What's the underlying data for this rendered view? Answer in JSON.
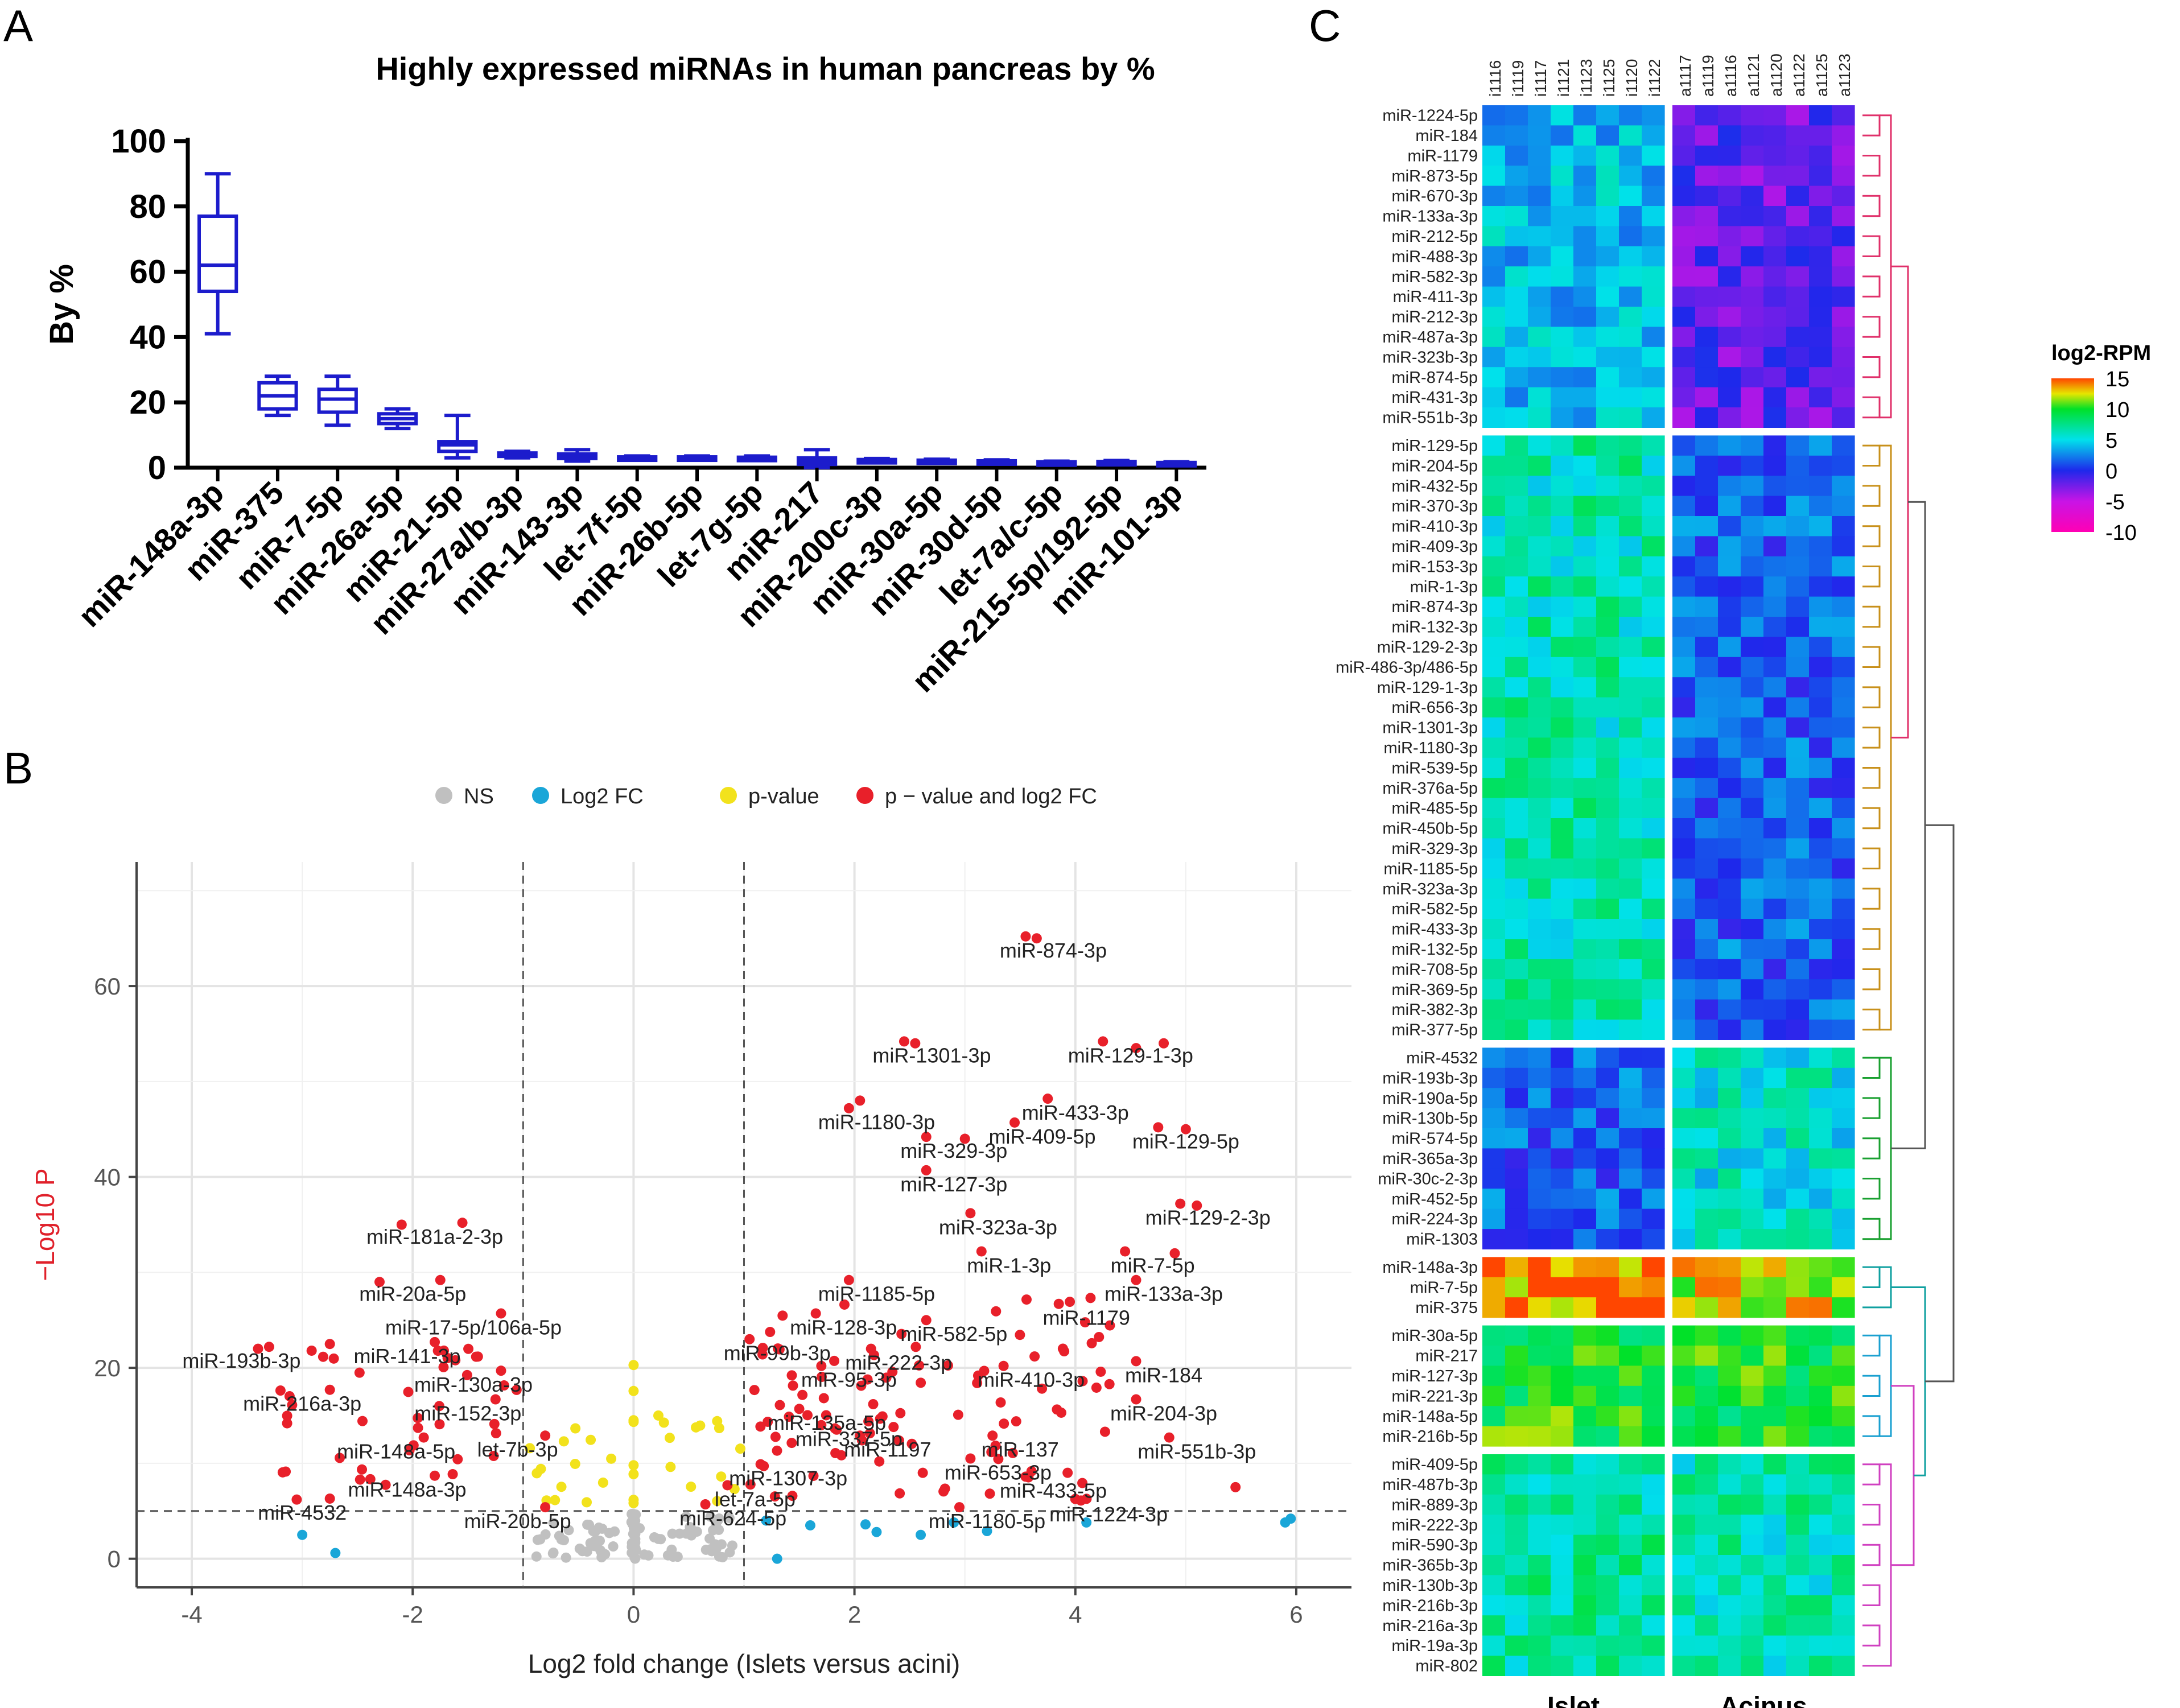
{
  "panels": {
    "a": "A",
    "b": "B",
    "c": "C"
  },
  "chart_data": [
    {
      "id": "A",
      "type": "boxplot",
      "title": "Highly expressed miRNAs in human pancreas by %",
      "ylabel": "By %",
      "ylim": [
        0,
        100
      ],
      "yticks": [
        0,
        20,
        40,
        60,
        80,
        100
      ],
      "color": "#1c1ccc",
      "categories": [
        "miR-148a-3p",
        "miR-375",
        "miR-7-5p",
        "miR-26a-5p",
        "miR-21-5p",
        "miR-27a/b-3p",
        "miR-143-3p",
        "let-7f-5p",
        "miR-26b-5p",
        "let-7g-5p",
        "miR-217",
        "miR-200c-3p",
        "miR-30a-5p",
        "miR-30d-5p",
        "let-7a/c-5p",
        "miR-215-5p/192-5p",
        "miR-101-3p"
      ],
      "boxes": [
        {
          "min": 41,
          "q1": 54,
          "median": 62,
          "q3": 77,
          "max": 90
        },
        {
          "min": 16,
          "q1": 18,
          "median": 22,
          "q3": 26,
          "max": 28
        },
        {
          "min": 13,
          "q1": 17,
          "median": 21,
          "q3": 24,
          "max": 28
        },
        {
          "min": 12,
          "q1": 13.5,
          "median": 15,
          "q3": 16.5,
          "max": 18
        },
        {
          "min": 3,
          "q1": 5,
          "median": 7,
          "q3": 8,
          "max": 16
        },
        {
          "min": 3,
          "q1": 3.5,
          "median": 4,
          "q3": 4.5,
          "max": 5
        },
        {
          "min": 2,
          "q1": 2.8,
          "median": 3.5,
          "q3": 4.2,
          "max": 5.5
        },
        {
          "min": 2.5,
          "q1": 2.8,
          "median": 3,
          "q3": 3.3,
          "max": 3.6
        },
        {
          "min": 2.5,
          "q1": 2.8,
          "median": 3,
          "q3": 3.3,
          "max": 3.6
        },
        {
          "min": 2.2,
          "q1": 2.5,
          "median": 2.9,
          "q3": 3.2,
          "max": 3.6
        },
        {
          "min": 0,
          "q1": 1,
          "median": 2,
          "q3": 3,
          "max": 5.5
        },
        {
          "min": 1.8,
          "q1": 2,
          "median": 2.2,
          "q3": 2.5,
          "max": 2.8
        },
        {
          "min": 1.7,
          "q1": 1.9,
          "median": 2.1,
          "q3": 2.3,
          "max": 2.6
        },
        {
          "min": 1.5,
          "q1": 1.7,
          "median": 1.9,
          "q3": 2.1,
          "max": 2.4
        },
        {
          "min": 1.2,
          "q1": 1.4,
          "median": 1.6,
          "q3": 1.8,
          "max": 2
        },
        {
          "min": 1.3,
          "q1": 1.5,
          "median": 1.7,
          "q3": 1.9,
          "max": 2.2
        },
        {
          "min": 1,
          "q1": 1.2,
          "median": 1.4,
          "q3": 1.6,
          "max": 1.8
        }
      ]
    },
    {
      "id": "B",
      "type": "scatter",
      "subtype": "volcano",
      "xlabel": "Log2 fold change (Islets versus acini)",
      "ylabel": "−Log10 P",
      "xlim": [
        -4.5,
        6.5
      ],
      "ylim": [
        -3,
        73
      ],
      "xticks": [
        -4,
        -2,
        0,
        2,
        4,
        6
      ],
      "yticks": [
        0,
        20,
        40,
        60
      ],
      "fc_cutoff": 1,
      "p_cutoff": 5,
      "legend": [
        {
          "label": "NS",
          "color": "#c0c0c0"
        },
        {
          "label": "Log2 FC",
          "color": "#1aa6d8"
        },
        {
          "label": "p-value",
          "color": "#f2e21c"
        },
        {
          "label": "p − value and log2 FC",
          "color": "#e8202a"
        }
      ],
      "labels": [
        {
          "text": "miR-874-3p",
          "x": 3.8,
          "y": 63
        },
        {
          "text": "miR-1301-3p",
          "x": 2.7,
          "y": 52
        },
        {
          "text": "miR-129-1-3p",
          "x": 4.5,
          "y": 52
        },
        {
          "text": "miR-433-3p",
          "x": 4.0,
          "y": 46
        },
        {
          "text": "miR-1180-3p",
          "x": 2.2,
          "y": 45
        },
        {
          "text": "miR-409-5p",
          "x": 3.7,
          "y": 43.5
        },
        {
          "text": "miR-129-5p",
          "x": 5.0,
          "y": 43
        },
        {
          "text": "miR-329-3p",
          "x": 2.9,
          "y": 42
        },
        {
          "text": "miR-127-3p",
          "x": 2.9,
          "y": 38.5
        },
        {
          "text": "miR-323a-3p",
          "x": 3.3,
          "y": 34
        },
        {
          "text": "miR-129-2-3p",
          "x": 5.2,
          "y": 35
        },
        {
          "text": "miR-181a-2-3p",
          "x": -1.8,
          "y": 33
        },
        {
          "text": "miR-1-3p",
          "x": 3.4,
          "y": 30
        },
        {
          "text": "miR-7-5p",
          "x": 4.7,
          "y": 30
        },
        {
          "text": "miR-20a-5p",
          "x": -2.0,
          "y": 27
        },
        {
          "text": "miR-1185-5p",
          "x": 2.2,
          "y": 27
        },
        {
          "text": "miR-133a-3p",
          "x": 4.8,
          "y": 27
        },
        {
          "text": "miR-1179",
          "x": 4.1,
          "y": 24.5
        },
        {
          "text": "miR-17-5p/106a-5p",
          "x": -1.45,
          "y": 23.5
        },
        {
          "text": "miR-128-3p",
          "x": 1.9,
          "y": 23.5
        },
        {
          "text": "miR-582-5p",
          "x": 2.9,
          "y": 22.8
        },
        {
          "text": "miR-141-3p",
          "x": -2.05,
          "y": 20.5
        },
        {
          "text": "miR-99b-3p",
          "x": 1.3,
          "y": 20.8
        },
        {
          "text": "miR-193b-3p",
          "x": -3.55,
          "y": 20
        },
        {
          "text": "miR-222-3p",
          "x": 2.4,
          "y": 19.8
        },
        {
          "text": "miR-184",
          "x": 4.8,
          "y": 18.5
        },
        {
          "text": "miR-95-3p",
          "x": 1.95,
          "y": 18
        },
        {
          "text": "miR-410-3p",
          "x": 3.6,
          "y": 18
        },
        {
          "text": "miR-130a-3p",
          "x": -1.45,
          "y": 17.5
        },
        {
          "text": "miR-216a-3p",
          "x": -3.0,
          "y": 15.5
        },
        {
          "text": "miR-152-3p",
          "x": -1.5,
          "y": 14.5
        },
        {
          "text": "miR-204-3p",
          "x": 4.8,
          "y": 14.5
        },
        {
          "text": "miR-135a-5p",
          "x": 1.75,
          "y": 13.5
        },
        {
          "text": "miR-337-5p",
          "x": 1.95,
          "y": 11.8
        },
        {
          "text": "miR-148a-5p",
          "x": -2.15,
          "y": 10.5
        },
        {
          "text": "let-7b-3p",
          "x": -1.05,
          "y": 10.7
        },
        {
          "text": "miR-1197",
          "x": 2.3,
          "y": 10.7
        },
        {
          "text": "miR-137",
          "x": 3.5,
          "y": 10.7
        },
        {
          "text": "miR-551b-3p",
          "x": 5.1,
          "y": 10.5
        },
        {
          "text": "miR-653-3p",
          "x": 3.3,
          "y": 8.3
        },
        {
          "text": "miR-1307-3p",
          "x": 1.4,
          "y": 7.7
        },
        {
          "text": "miR-148a-3p",
          "x": -2.05,
          "y": 6.5
        },
        {
          "text": "miR-433-5p",
          "x": 3.8,
          "y": 6.4
        },
        {
          "text": "let-7a-5p",
          "x": 1.1,
          "y": 5.5
        },
        {
          "text": "miR-4532",
          "x": -3.0,
          "y": 4.1
        },
        {
          "text": "miR-624-5p",
          "x": 0.9,
          "y": 3.5
        },
        {
          "text": "miR-20b-5p",
          "x": -1.05,
          "y": 3.2
        },
        {
          "text": "miR-1180-5p",
          "x": 3.2,
          "y": 3.2
        },
        {
          "text": "miR-1224-3p",
          "x": 4.3,
          "y": 3.9
        }
      ]
    },
    {
      "id": "C",
      "type": "heatmap",
      "legend_title": "log2-RPM",
      "scale_ticks": [
        15,
        10,
        5,
        0,
        -5,
        -10
      ],
      "scale_range": [
        -10,
        15
      ],
      "columns": [
        "i1116",
        "i1119",
        "i1117",
        "i1121",
        "i1123",
        "i1125",
        "i1120",
        "i1122",
        "a1117",
        "a1119",
        "a1116",
        "a1121",
        "a1120",
        "a1122",
        "a1125",
        "a1123"
      ],
      "groups": [
        "Islet",
        "Acinus"
      ],
      "clusters": [
        {
          "rows": [
            "miR-1224-5p",
            "miR-184",
            "miR-1179",
            "miR-873-5p",
            "miR-670-3p",
            "miR-133a-3p",
            "miR-212-5p",
            "miR-488-3p",
            "miR-582-3p",
            "miR-411-3p",
            "miR-212-3p",
            "miR-487a-3p",
            "miR-323b-3p",
            "miR-874-5p",
            "miR-431-3p",
            "miR-551b-3p"
          ],
          "islet": 4.0,
          "acinus": -2.0
        },
        {
          "rows": [
            "miR-129-5p",
            "miR-204-5p",
            "miR-432-5p",
            "miR-370-3p",
            "miR-410-3p",
            "miR-409-3p",
            "miR-153-3p",
            "miR-1-3p",
            "miR-874-3p",
            "miR-132-3p",
            "miR-129-2-3p",
            "miR-486-3p/486-5p",
            "miR-129-1-3p",
            "miR-656-3p",
            "miR-1301-3p",
            "miR-1180-3p",
            "miR-539-5p",
            "miR-376a-5p",
            "miR-485-5p",
            "miR-450b-5p",
            "miR-329-3p",
            "miR-1185-5p",
            "miR-323a-3p",
            "miR-582-5p",
            "miR-433-3p",
            "miR-132-5p",
            "miR-708-5p",
            "miR-369-5p",
            "miR-382-3p",
            "miR-377-5p"
          ],
          "islet": 6.5,
          "acinus": 1.5
        },
        {
          "rows": [
            "miR-4532",
            "miR-193b-3p",
            "miR-190a-5p",
            "miR-130b-5p",
            "miR-574-5p",
            "miR-365a-3p",
            "miR-30c-2-3p",
            "miR-452-5p",
            "miR-224-3p",
            "miR-1303"
          ],
          "islet": 1.5,
          "acinus": 5.5
        },
        {
          "rows": [
            "miR-148a-3p",
            "miR-7-5p",
            "miR-375"
          ],
          "islet": 13.8,
          "acinus": 12.5
        },
        {
          "rows": [
            "miR-30a-5p",
            "miR-217",
            "miR-127-3p",
            "miR-221-3p",
            "miR-148a-5p",
            "miR-216b-5p"
          ],
          "islet": 9.8,
          "acinus": 9.5
        },
        {
          "rows": [
            "miR-409-5p",
            "miR-487b-3p",
            "miR-889-3p",
            "miR-222-3p",
            "miR-590-3p",
            "miR-365b-3p",
            "miR-130b-3p",
            "miR-216b-3p",
            "miR-216a-3p",
            "miR-19a-3p",
            "miR-802"
          ],
          "islet": 7.0,
          "acinus": 6.5
        }
      ]
    }
  ]
}
